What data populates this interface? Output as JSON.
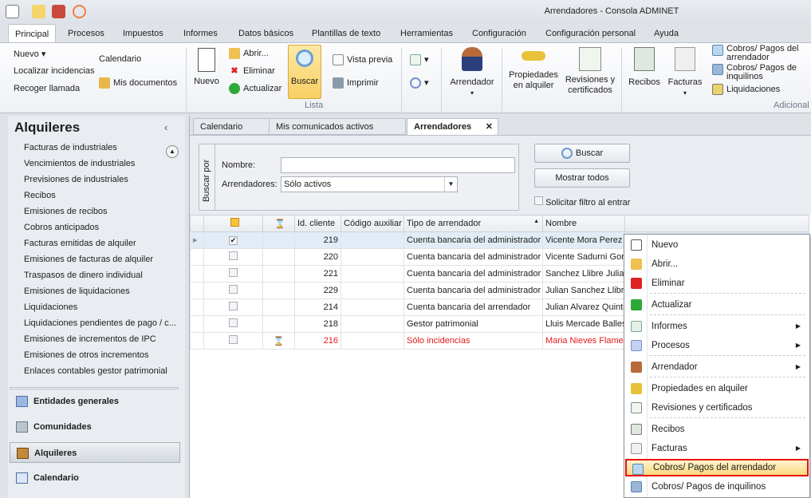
{
  "window": {
    "title": "Arrendadores - Consola ADMINET"
  },
  "quick_access": [
    "app-icon",
    "mail-icon",
    "tasks-icon",
    "signal-icon"
  ],
  "ribbon_tabs": [
    "Principal",
    "Procesos",
    "Impuestos",
    "Informes",
    "Datos básicos",
    "Plantillas de texto",
    "Herramientas",
    "Configuración",
    "Configuración personal",
    "Ayuda"
  ],
  "ribbon": {
    "nuevo_menu": "Nuevo",
    "localizar": "Localizar incidencias",
    "recoger": "Recoger llamada",
    "calendario": "Calendario",
    "mis_documentos": "Mis documentos",
    "nuevo": "Nuevo",
    "abrir": "Abrir...",
    "eliminar": "Eliminar",
    "actualizar": "Actualizar",
    "buscar": "Buscar",
    "vista_previa": "Vista previa",
    "imprimir": "Imprimir",
    "group_lista": "Lista",
    "arrendador": "Arrendador",
    "propiedades_1": "Propiedades",
    "propiedades_2": "en alquiler",
    "revisiones_1": "Revisiones y",
    "revisiones_2": "certificados",
    "recibos": "Recibos",
    "facturas": "Facturas",
    "cobros_arr": "Cobros/ Pagos del arrendador",
    "cobros_inq": "Cobros/ Pagos de inquilinos",
    "liquidaciones": "Liquidaciones",
    "group_adicional": "Adicional"
  },
  "sidebar": {
    "title": "Alquileres",
    "items": [
      "Facturas de industriales",
      "Vencimientos de industriales",
      "Previsiones de industriales",
      "Recibos",
      "Emisiones de recibos",
      "Cobros anticipados",
      "Facturas emitidas de alquiler",
      "Emisiones de facturas de alquiler",
      "Traspasos de dinero individual",
      "Emisiones de liquidaciones",
      "Liquidaciones",
      "Liquidaciones pendientes de pago / c...",
      "Emisiones de incrementos de IPC",
      "Emisiones de otros incrementos",
      "Enlaces contables gestor patrimonial"
    ],
    "nav": [
      "Entidades generales",
      "Comunidades",
      "Alquileres",
      "Calendario"
    ],
    "nav_selected": "Alquileres"
  },
  "doc_tabs": [
    "Calendario",
    "Mis comunicados activos",
    "Arrendadores"
  ],
  "search": {
    "label": "Buscar por",
    "nombre_label": "Nombre:",
    "nombre_value": "",
    "arrendadores_label": "Arrendadores:",
    "arrendadores_value": "Sólo activos",
    "buscar": "Buscar",
    "mostrar_todos": "Mostrar todos",
    "solicitar": "Solicitar filtro al entrar"
  },
  "grid": {
    "columns": [
      "",
      "",
      "Id. cliente",
      "Código auxiliar",
      "Tipo de arrendador",
      "Nombre"
    ],
    "rows": [
      {
        "checked": true,
        "flag": false,
        "id": "219",
        "aux": "",
        "tipo": "Cuenta bancaria del administrador",
        "nombre": "Vicente Mora Perez"
      },
      {
        "checked": false,
        "flag": false,
        "id": "220",
        "aux": "",
        "tipo": "Cuenta bancaria del administrador",
        "nombre": "Vicente Sadurni Gonz"
      },
      {
        "checked": false,
        "flag": false,
        "id": "221",
        "aux": "",
        "tipo": "Cuenta bancaria del administrador",
        "nombre": "Sanchez Llibre Julian"
      },
      {
        "checked": false,
        "flag": false,
        "id": "229",
        "aux": "",
        "tipo": "Cuenta bancaria del administrador",
        "nombre": "Julian Sanchez Llibre"
      },
      {
        "checked": false,
        "flag": false,
        "id": "214",
        "aux": "",
        "tipo": "Cuenta bancaria del arrendador",
        "nombre": "Julian Alvarez Quinte"
      },
      {
        "checked": false,
        "flag": false,
        "id": "218",
        "aux": "",
        "tipo": "Gestor patrimonial",
        "nombre": "Lluis Mercade Ballest"
      },
      {
        "checked": false,
        "flag": true,
        "id": "216",
        "aux": "",
        "tipo": "Sólo incidencias",
        "nombre": "Maria Nieves Flameri"
      }
    ],
    "highlight_color": "#e51a1a"
  },
  "context_menu": {
    "items": [
      "Nuevo",
      "Abrir...",
      "Eliminar",
      "Actualizar",
      "Informes",
      "Procesos",
      "Arrendador",
      "Propiedades en alquiler",
      "Revisiones y certificados",
      "Recibos",
      "Facturas",
      "Cobros/ Pagos del arrendador",
      "Cobros/ Pagos de inquilinos"
    ],
    "highlighted": "Cobros/ Pagos del arrendador"
  }
}
